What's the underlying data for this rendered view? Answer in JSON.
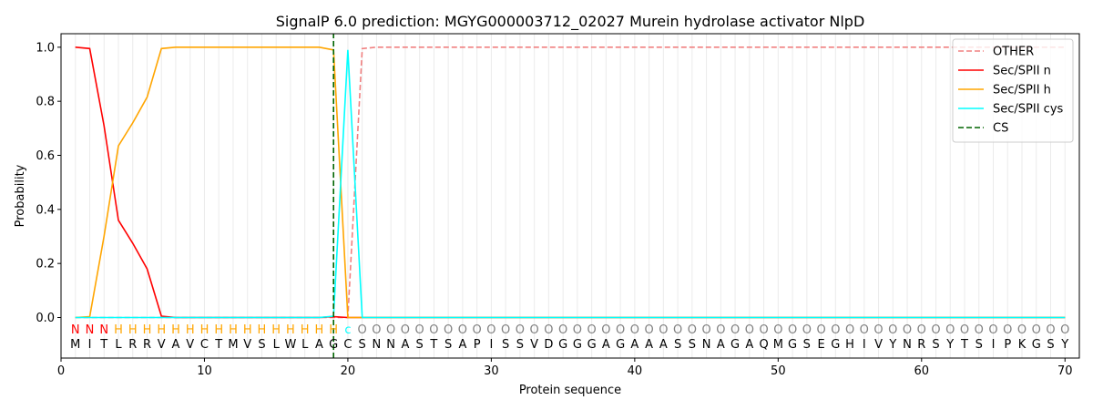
{
  "chart_data": {
    "type": "line",
    "title": "SignalP 6.0 prediction: MGYG000003712_02027 Murein hydrolase activator NlpD",
    "xlabel": "Protein sequence",
    "ylabel": "Probability",
    "xlim": [
      0,
      71
    ],
    "ylim": [
      -0.15,
      1.05
    ],
    "x_ticks": [
      0,
      10,
      20,
      30,
      40,
      50,
      60,
      70
    ],
    "y_ticks": [
      0.0,
      0.2,
      0.4,
      0.6,
      0.8,
      1.0
    ],
    "x_tick_labels": [
      "0",
      "10",
      "20",
      "30",
      "40",
      "50",
      "60",
      "70"
    ],
    "y_tick_labels": [
      "0.0",
      "0.2",
      "0.4",
      "0.6",
      "0.8",
      "1.0"
    ],
    "grid": "vertical lines at each residue",
    "legend_position": "top-right",
    "sequence": [
      "M",
      "I",
      "T",
      "L",
      "R",
      "R",
      "V",
      "A",
      "V",
      "C",
      "T",
      "M",
      "V",
      "S",
      "L",
      "W",
      "L",
      "A",
      "G",
      "C",
      "S",
      "N",
      "N",
      "A",
      "S",
      "T",
      "S",
      "A",
      "P",
      "I",
      "S",
      "S",
      "V",
      "D",
      "G",
      "G",
      "G",
      "A",
      "G",
      "A",
      "A",
      "A",
      "S",
      "S",
      "N",
      "A",
      "G",
      "A",
      "Q",
      "M",
      "G",
      "S",
      "E",
      "G",
      "H",
      "I",
      "V",
      "Y",
      "N",
      "R",
      "S",
      "Y",
      "T",
      "S",
      "I",
      "P",
      "K",
      "G",
      "S",
      "Y"
    ],
    "predicted_labels": [
      "N",
      "N",
      "N",
      "H",
      "H",
      "H",
      "H",
      "H",
      "H",
      "H",
      "H",
      "H",
      "H",
      "H",
      "H",
      "H",
      "H",
      "H",
      "H",
      "c",
      "O",
      "O",
      "O",
      "O",
      "O",
      "O",
      "O",
      "O",
      "O",
      "O",
      "O",
      "O",
      "O",
      "O",
      "O",
      "O",
      "O",
      "O",
      "O",
      "O",
      "O",
      "O",
      "O",
      "O",
      "O",
      "O",
      "O",
      "O",
      "O",
      "O",
      "O",
      "O",
      "O",
      "O",
      "O",
      "O",
      "O",
      "O",
      "O",
      "O",
      "O",
      "O",
      "O",
      "O",
      "O",
      "O",
      "O",
      "O",
      "O",
      "O"
    ],
    "label_colors": {
      "N": "#ff0000",
      "H": "#ffa500",
      "c": "#00ffff",
      "O": "#808080"
    },
    "cleavage_site": 19,
    "series": [
      {
        "name": "OTHER",
        "color": "#f08080",
        "dash": "dashed",
        "x": [
          1,
          2,
          3,
          4,
          5,
          6,
          7,
          8,
          9,
          10,
          11,
          12,
          13,
          14,
          15,
          16,
          17,
          18,
          19,
          20,
          21,
          22,
          23,
          24,
          25,
          26,
          27,
          28,
          29,
          30,
          31,
          32,
          33,
          34,
          35,
          36,
          37,
          38,
          39,
          40,
          41,
          42,
          43,
          44,
          45,
          46,
          47,
          48,
          49,
          50,
          51,
          52,
          53,
          54,
          55,
          56,
          57,
          58,
          59,
          60,
          61,
          62,
          63,
          64,
          65,
          66,
          67,
          68,
          69,
          70
        ],
        "values": [
          0.0,
          0.0,
          0.0,
          0.0,
          0.0,
          0.0,
          0.0,
          0.0,
          0.0,
          0.0,
          0.0,
          0.0,
          0.0,
          0.0,
          0.0,
          0.0,
          0.0,
          0.0,
          0.0,
          0.0,
          0.995,
          1.0,
          1.0,
          1.0,
          1.0,
          1.0,
          1.0,
          1.0,
          1.0,
          1.0,
          1.0,
          1.0,
          1.0,
          1.0,
          1.0,
          1.0,
          1.0,
          1.0,
          1.0,
          1.0,
          1.0,
          1.0,
          1.0,
          1.0,
          1.0,
          1.0,
          1.0,
          1.0,
          1.0,
          1.0,
          1.0,
          1.0,
          1.0,
          1.0,
          1.0,
          1.0,
          1.0,
          1.0,
          1.0,
          1.0,
          1.0,
          1.0,
          1.0,
          1.0,
          1.0,
          1.0,
          1.0,
          1.0,
          1.0,
          1.0
        ]
      },
      {
        "name": "Sec/SPII n",
        "color": "#ff0000",
        "dash": "solid",
        "x": [
          1,
          2,
          3,
          4,
          5,
          6,
          7,
          8,
          9,
          10,
          11,
          12,
          13,
          14,
          15,
          16,
          17,
          18,
          19,
          20,
          21,
          22,
          23,
          24,
          25,
          26,
          27,
          28,
          29,
          30,
          31,
          32,
          33,
          34,
          35,
          36,
          37,
          38,
          39,
          40,
          41,
          42,
          43,
          44,
          45,
          46,
          47,
          48,
          49,
          50,
          51,
          52,
          53,
          54,
          55,
          56,
          57,
          58,
          59,
          60,
          61,
          62,
          63,
          64,
          65,
          66,
          67,
          68,
          69,
          70
        ],
        "values": [
          1.0,
          0.995,
          0.71,
          0.36,
          0.275,
          0.18,
          0.005,
          0.0,
          0.0,
          0.0,
          0.0,
          0.0,
          0.0,
          0.0,
          0.0,
          0.0,
          0.0,
          0.0,
          0.003,
          0.0,
          0.0,
          0.0,
          0.0,
          0.0,
          0.0,
          0.0,
          0.0,
          0.0,
          0.0,
          0.0,
          0.0,
          0.0,
          0.0,
          0.0,
          0.0,
          0.0,
          0.0,
          0.0,
          0.0,
          0.0,
          0.0,
          0.0,
          0.0,
          0.0,
          0.0,
          0.0,
          0.0,
          0.0,
          0.0,
          0.0,
          0.0,
          0.0,
          0.0,
          0.0,
          0.0,
          0.0,
          0.0,
          0.0,
          0.0,
          0.0,
          0.0,
          0.0,
          0.0,
          0.0,
          0.0,
          0.0,
          0.0,
          0.0,
          0.0,
          0.0
        ]
      },
      {
        "name": "Sec/SPII h",
        "color": "#ffa500",
        "dash": "solid",
        "x": [
          1,
          2,
          3,
          4,
          5,
          6,
          7,
          8,
          9,
          10,
          11,
          12,
          13,
          14,
          15,
          16,
          17,
          18,
          19,
          20,
          21,
          22,
          23,
          24,
          25,
          26,
          27,
          28,
          29,
          30,
          31,
          32,
          33,
          34,
          35,
          36,
          37,
          38,
          39,
          40,
          41,
          42,
          43,
          44,
          45,
          46,
          47,
          48,
          49,
          50,
          51,
          52,
          53,
          54,
          55,
          56,
          57,
          58,
          59,
          60,
          61,
          62,
          63,
          64,
          65,
          66,
          67,
          68,
          69,
          70
        ],
        "values": [
          0.0,
          0.003,
          0.3,
          0.635,
          0.72,
          0.815,
          0.995,
          1.0,
          1.0,
          1.0,
          1.0,
          1.0,
          1.0,
          1.0,
          1.0,
          1.0,
          1.0,
          1.0,
          0.99,
          0.0,
          0.0,
          0.0,
          0.0,
          0.0,
          0.0,
          0.0,
          0.0,
          0.0,
          0.0,
          0.0,
          0.0,
          0.0,
          0.0,
          0.0,
          0.0,
          0.0,
          0.0,
          0.0,
          0.0,
          0.0,
          0.0,
          0.0,
          0.0,
          0.0,
          0.0,
          0.0,
          0.0,
          0.0,
          0.0,
          0.0,
          0.0,
          0.0,
          0.0,
          0.0,
          0.0,
          0.0,
          0.0,
          0.0,
          0.0,
          0.0,
          0.0,
          0.0,
          0.0,
          0.0,
          0.0,
          0.0,
          0.0,
          0.0,
          0.0,
          0.0
        ]
      },
      {
        "name": "Sec/SPII cys",
        "color": "#00ffff",
        "dash": "solid",
        "x": [
          1,
          2,
          3,
          4,
          5,
          6,
          7,
          8,
          9,
          10,
          11,
          12,
          13,
          14,
          15,
          16,
          17,
          18,
          19,
          20,
          21,
          22,
          23,
          24,
          25,
          26,
          27,
          28,
          29,
          30,
          31,
          32,
          33,
          34,
          35,
          36,
          37,
          38,
          39,
          40,
          41,
          42,
          43,
          44,
          45,
          46,
          47,
          48,
          49,
          50,
          51,
          52,
          53,
          54,
          55,
          56,
          57,
          58,
          59,
          60,
          61,
          62,
          63,
          64,
          65,
          66,
          67,
          68,
          69,
          70
        ],
        "values": [
          0.0,
          0.0,
          0.0,
          0.0,
          0.0,
          0.0,
          0.0,
          0.0,
          0.0,
          0.0,
          0.0,
          0.0,
          0.0,
          0.0,
          0.0,
          0.0,
          0.0,
          0.0,
          0.005,
          0.99,
          0.0,
          0.0,
          0.0,
          0.0,
          0.0,
          0.0,
          0.0,
          0.0,
          0.0,
          0.0,
          0.0,
          0.0,
          0.0,
          0.0,
          0.0,
          0.0,
          0.0,
          0.0,
          0.0,
          0.0,
          0.0,
          0.0,
          0.0,
          0.0,
          0.0,
          0.0,
          0.0,
          0.0,
          0.0,
          0.0,
          0.0,
          0.0,
          0.0,
          0.0,
          0.0,
          0.0,
          0.0,
          0.0,
          0.0,
          0.0,
          0.0,
          0.0,
          0.0,
          0.0,
          0.0,
          0.0,
          0.0,
          0.0,
          0.0,
          0.0
        ]
      },
      {
        "name": "CS",
        "color": "#006400",
        "dash": "dashed",
        "x": [
          19,
          19
        ],
        "values": [
          -0.15,
          1.05
        ]
      }
    ]
  }
}
